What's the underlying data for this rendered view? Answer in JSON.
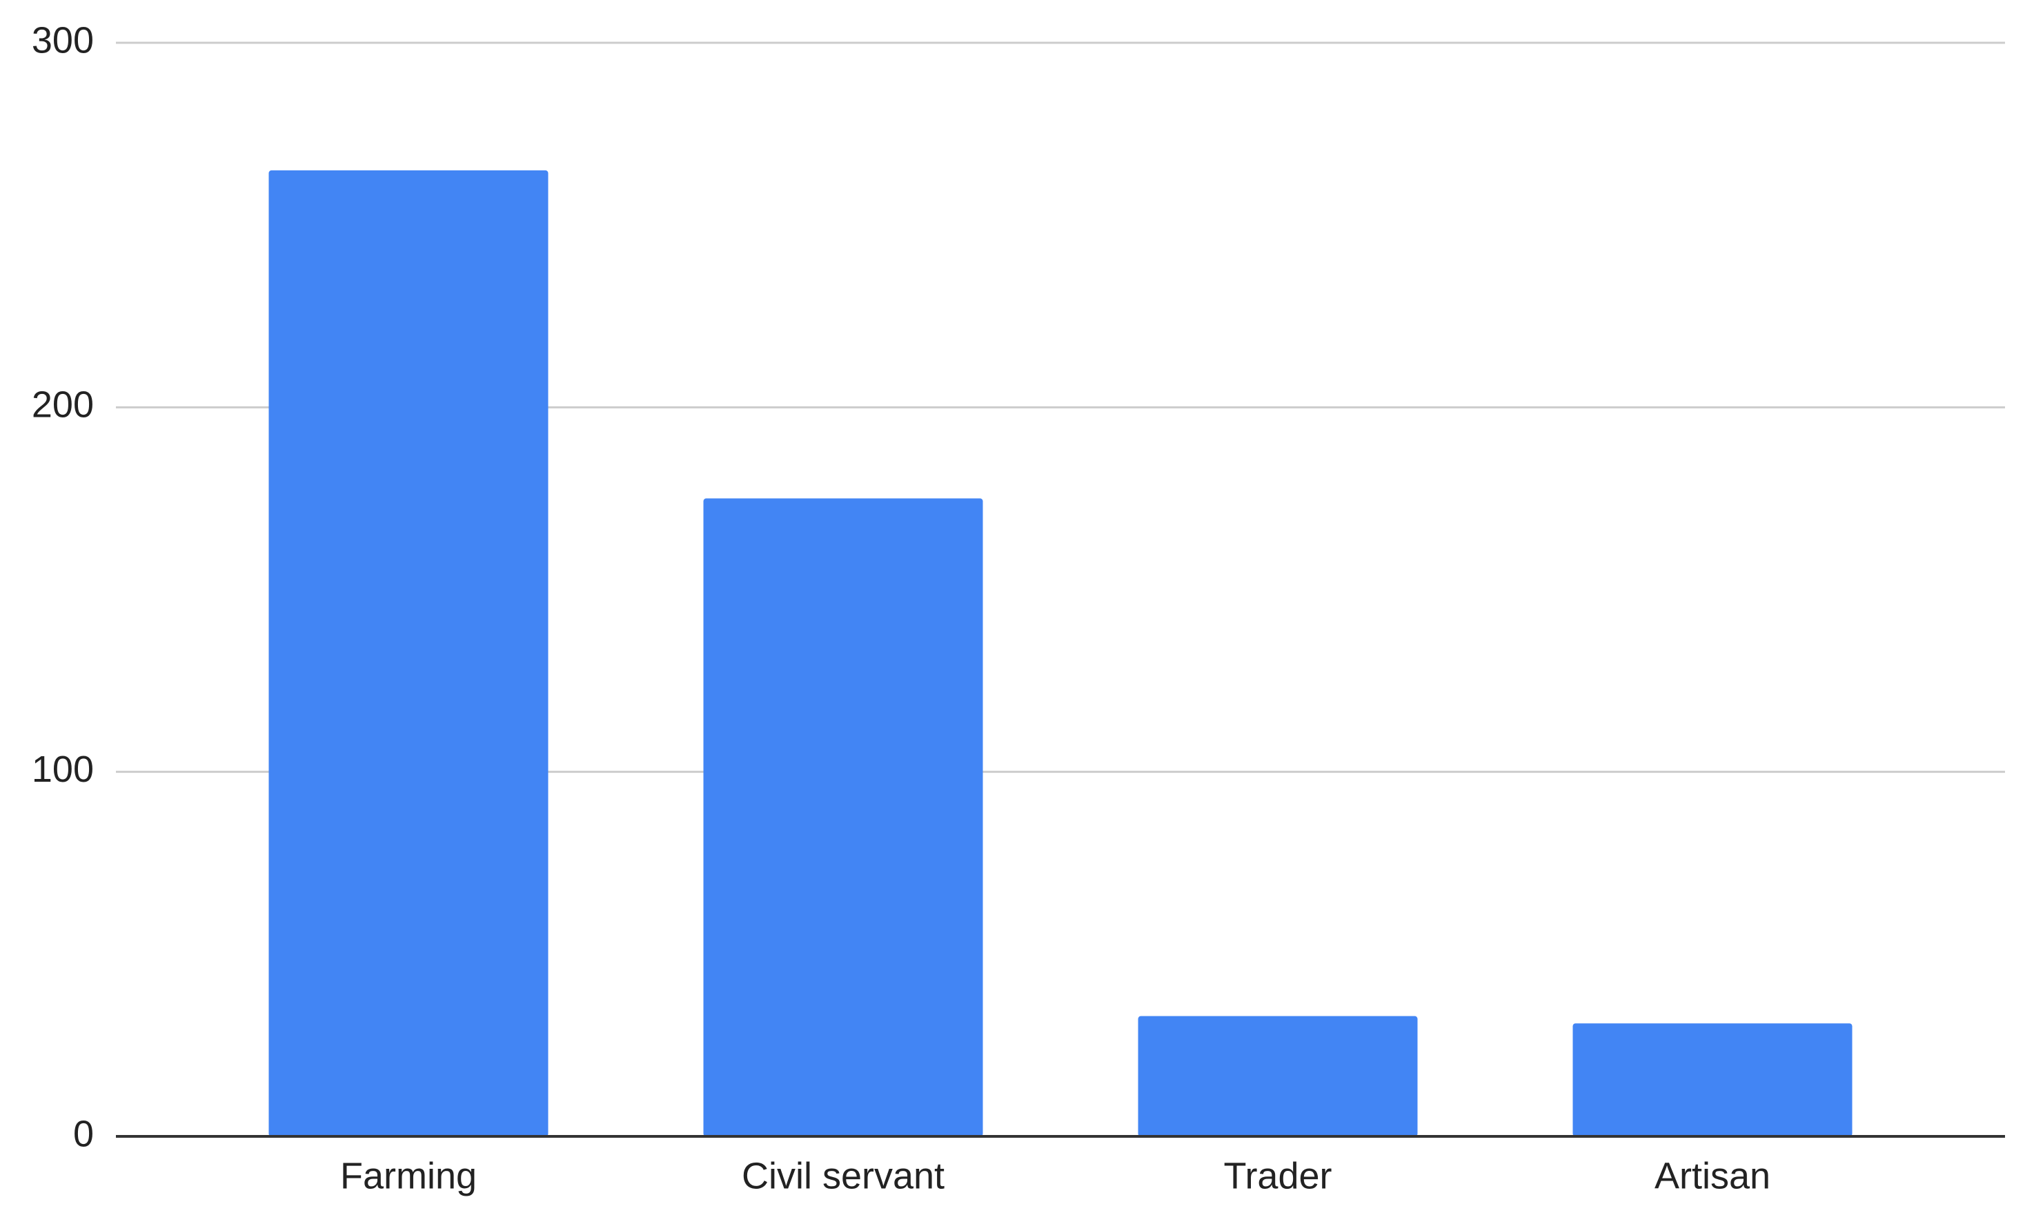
{
  "chart_data": {
    "type": "bar",
    "categories": [
      "Farming",
      "Civil servant",
      "Trader",
      "Artisan"
    ],
    "values": [
      265,
      175,
      33,
      31
    ],
    "color": "#4285f4",
    "ylim": [
      0,
      300
    ],
    "yticks": [
      0,
      100,
      200,
      300
    ],
    "grid": true
  }
}
